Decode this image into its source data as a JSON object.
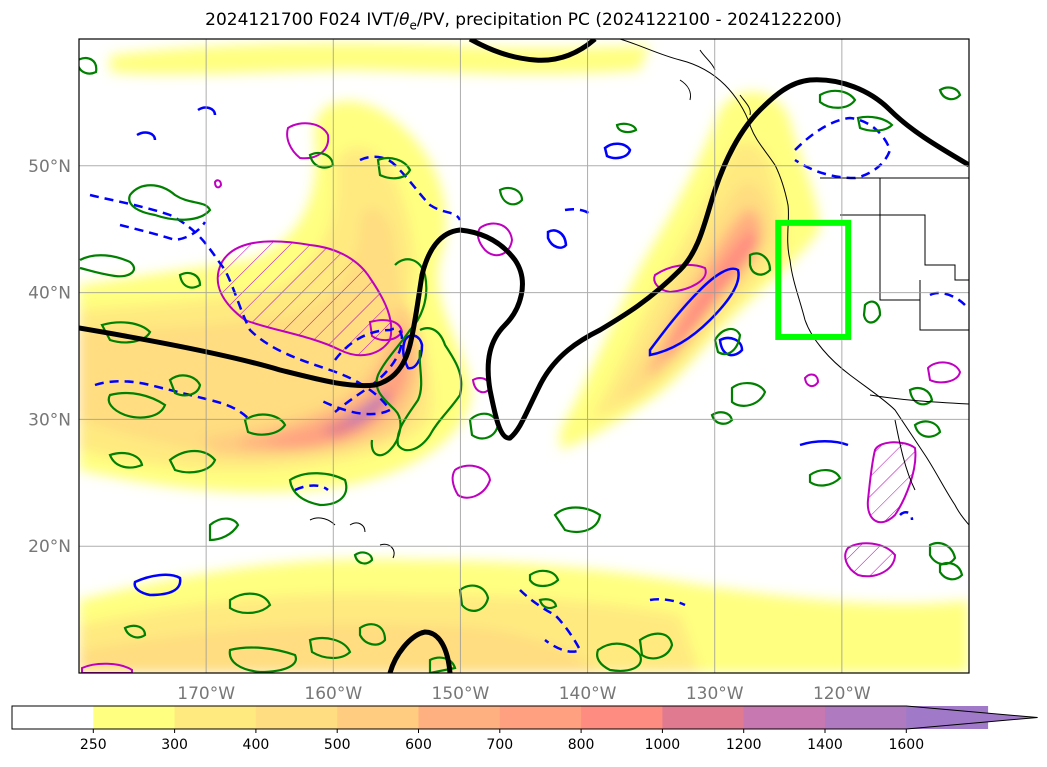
{
  "title": {
    "prefix": "2024121700 F024 IVT/",
    "theta": "θ",
    "theta_sub": "e",
    "suffix": "/PV, precipitation PC (2024122100 - 2024122200)"
  },
  "map": {
    "lon_range": [
      -180,
      -110
    ],
    "lat_range": [
      10,
      60
    ],
    "lat_labels": [
      {
        "lat": 50,
        "text": "50°N"
      },
      {
        "lat": 40,
        "text": "40°N"
      },
      {
        "lat": 30,
        "text": "30°N"
      },
      {
        "lat": 20,
        "text": "20°N"
      }
    ],
    "lon_labels": [
      {
        "lon": -170,
        "text": "170°W"
      },
      {
        "lon": -160,
        "text": "160°W"
      },
      {
        "lon": -150,
        "text": "150°W"
      },
      {
        "lon": -140,
        "text": "140°W"
      },
      {
        "lon": -130,
        "text": "130°W"
      },
      {
        "lon": -120,
        "text": "120°W"
      }
    ],
    "highlight_box": {
      "lon": [
        -125,
        -119.5
      ],
      "lat": [
        36.5,
        45.5
      ],
      "color": "#00ff00"
    },
    "colors": {
      "pv_contour": "#000000",
      "theta_contour": "#0000ff",
      "precip_contour": "#008000",
      "ivt_high_contour": "#c000c0",
      "box": "#00ff00"
    }
  },
  "colorbar": {
    "levels": [
      "250",
      "300",
      "400",
      "500",
      "600",
      "700",
      "800",
      "1000",
      "1200",
      "1400",
      "1600"
    ],
    "colors": [
      "#ffffff",
      "#ffff80",
      "#ffea80",
      "#ffdd80",
      "#ffcc80",
      "#ffb080",
      "#ffa080",
      "#ff8c80",
      "#e07a90",
      "#c878b0",
      "#b07ac0",
      "#a07ac8"
    ]
  }
}
